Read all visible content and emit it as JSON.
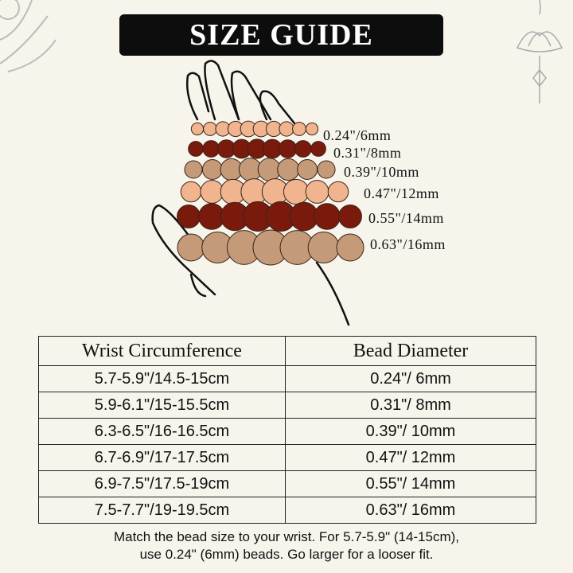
{
  "title": "SIZE GUIDE",
  "colors": {
    "peach": "#f0b48f",
    "dark_red": "#7a1a0c",
    "tan": "#c49a78",
    "banner": "#0d0d0d",
    "background": "#f7f4ec"
  },
  "bead_rows": [
    {
      "label": "0.24\"/6mm",
      "color": "peach"
    },
    {
      "label": "0.31\"/8mm",
      "color": "dark_red"
    },
    {
      "label": "0.39\"/10mm",
      "color": "tan"
    },
    {
      "label": "0.47\"/12mm",
      "color": "peach"
    },
    {
      "label": "0.55\"/14mm",
      "color": "dark_red"
    },
    {
      "label": "0.63\"/16mm",
      "color": "tan"
    }
  ],
  "table": {
    "headers": [
      "Wrist Circumference",
      "Bead Diameter"
    ],
    "rows": [
      [
        "5.7-5.9\"/14.5-15cm",
        "0.24\"/ 6mm"
      ],
      [
        "5.9-6.1\"/15-15.5cm",
        "0.31\"/ 8mm"
      ],
      [
        "6.3-6.5\"/16-16.5cm",
        "0.39\"/ 10mm"
      ],
      [
        "6.7-6.9\"/17-17.5cm",
        "0.47\"/ 12mm"
      ],
      [
        "6.9-7.5\"/17.5-19cm",
        "0.55\"/ 14mm"
      ],
      [
        "7.5-7.7\"/19-19.5cm",
        "0.63\"/ 16mm"
      ]
    ]
  },
  "note": {
    "line1": "Match the bead size to your wrist. For 5.7-5.9\" (14-15cm),",
    "line2": "use 0.24\" (6mm) beads. Go larger for a looser fit."
  }
}
